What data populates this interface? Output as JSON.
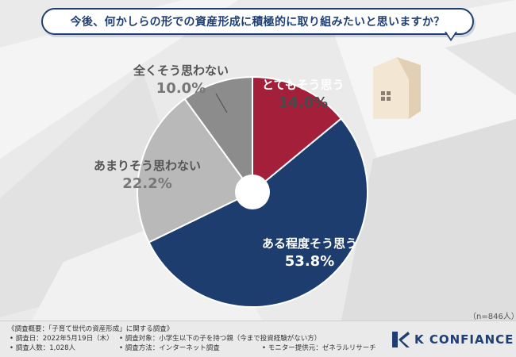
{
  "question": "今後、何かしらの形での資産形成に積極的に取り組みたいと思いますか？",
  "sample_note": "（n=846人）",
  "chart_data": {
    "type": "pie",
    "title": "今後、何かしらの形での資産形成に積極的に取り組みたいと思いますか？",
    "unit": "%",
    "categories": [
      "とてもそう思う",
      "ある程度そう思う",
      "あまりそう思わない",
      "全くそう思わない"
    ],
    "values": [
      14.0,
      53.8,
      22.2,
      10.0
    ],
    "value_labels": [
      "14.0%",
      "53.8%",
      "22.2%",
      "10.0%"
    ],
    "colors": [
      "#a31f3a",
      "#1c3d6e",
      "#b9b9b9",
      "#8c8c8c"
    ],
    "donut": true
  },
  "survey": {
    "overview": "《調査概要：「子育て世代の資産形成」に関する調査》",
    "date": "• 調査日：2022年5月19日（木）",
    "count": "• 調査人数：1,028人",
    "target": "• 調査対象：小学生以下の子を持つ親（今まで投資経験がない方）",
    "method": "• 調査方法：インターネット調査",
    "provider": "• モニター提供元：ゼネラルリサーチ"
  },
  "brand": {
    "name": "K CONFIANCE"
  }
}
